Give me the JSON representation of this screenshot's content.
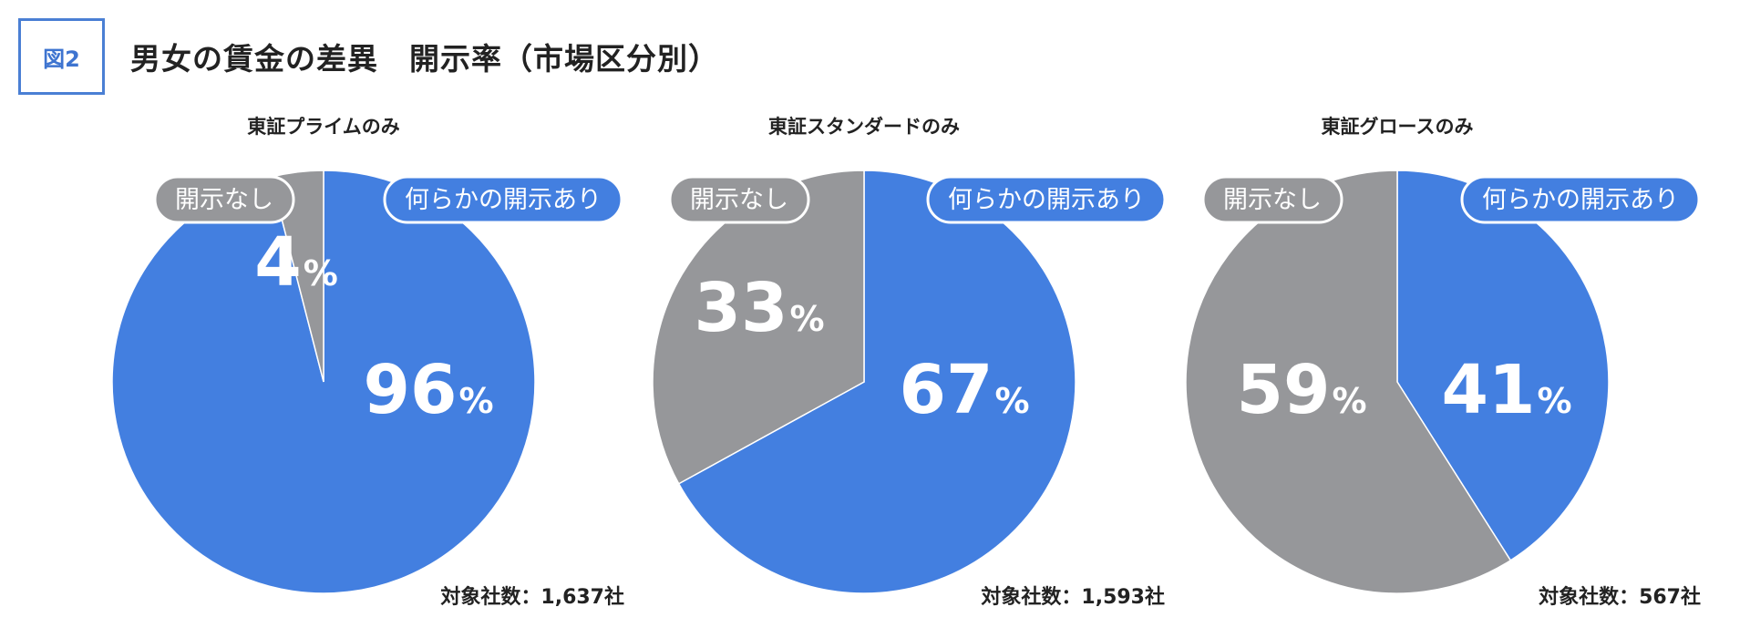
{
  "header": {
    "badge": "図2",
    "title": "男女の賃金の差異　開示率（市場区分別）"
  },
  "colors": {
    "disclosed": "#437fe0",
    "not_disclosed": "#96979a"
  },
  "chart_data": [
    {
      "type": "pie",
      "title": "東証プライムのみ",
      "slices": [
        {
          "label": "何らかの開示あり",
          "value": 96,
          "display": "96",
          "unit": "%",
          "color": "#437fe0"
        },
        {
          "label": "開示なし",
          "value": 4,
          "display": "4",
          "unit": "%",
          "color": "#96979a"
        }
      ],
      "note": "対象社数：1,637社"
    },
    {
      "type": "pie",
      "title": "東証スタンダードのみ",
      "slices": [
        {
          "label": "何らかの開示あり",
          "value": 67,
          "display": "67",
          "unit": "%",
          "color": "#437fe0"
        },
        {
          "label": "開示なし",
          "value": 33,
          "display": "33",
          "unit": "%",
          "color": "#96979a"
        }
      ],
      "note": "対象社数：1,593社"
    },
    {
      "type": "pie",
      "title": "東証グロースのみ",
      "slices": [
        {
          "label": "何らかの開示あり",
          "value": 41,
          "display": "41",
          "unit": "%",
          "color": "#437fe0"
        },
        {
          "label": "開示なし",
          "value": 59,
          "display": "59",
          "unit": "%",
          "color": "#96979a"
        }
      ],
      "note": "対象社数：567社"
    }
  ]
}
